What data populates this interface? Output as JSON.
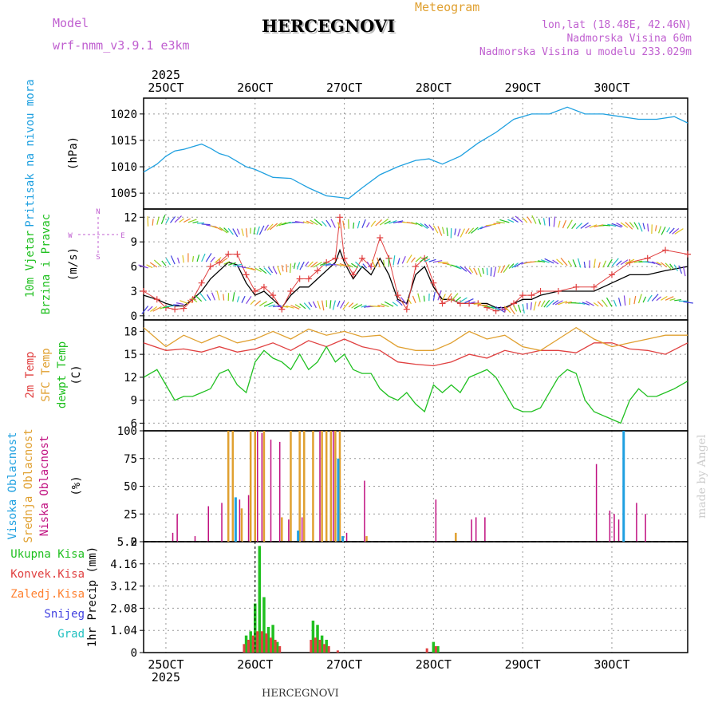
{
  "header": {
    "model_label": "Model",
    "model_name": "wrf-nmm_v3.9.1 e3km",
    "title": "HERCEGNOVI",
    "meteogram": "Meteogram",
    "lonlat": "lon,lat (18.48E, 42.46N)",
    "altitude": "Nadmorska Visina 60m",
    "model_altitude": "Nadmorska Visina u modelu 233.029m",
    "footer_title": "HERCEGNOVI",
    "credit": "made by Angel"
  },
  "colors": {
    "pressure": "#1fa0e0",
    "wind_label": "#20c020",
    "wind_speed": "#000000",
    "gust": "#e04040",
    "temp2m": "#e04040",
    "sfc": "#e0a030",
    "dewpt": "#20c020",
    "cloud_high": "#1fa0e0",
    "cloud_mid": "#e0a030",
    "cloud_low": "#c01080",
    "total_precip": "#20c020",
    "convective": "#e04040",
    "frozen": "#ff8030",
    "snow": "#4040e0",
    "graupel": "#20c0c0",
    "model": "#c060d0"
  },
  "chart_data": {
    "type": "line",
    "x_unit": "day (1 = 25OCT 00Z)",
    "x_range": [
      0.75,
      6.85
    ],
    "year": "2025",
    "x_ticks": [
      {
        "x": 1,
        "label": "25OCT"
      },
      {
        "x": 2,
        "label": "26OCT"
      },
      {
        "x": 3,
        "label": "27OCT"
      },
      {
        "x": 4,
        "label": "28OCT"
      },
      {
        "x": 5,
        "label": "29OCT"
      },
      {
        "x": 6,
        "label": "30OCT"
      }
    ],
    "panels": [
      {
        "id": "pressure",
        "ylabel_left": "Pritisak na nivou mora",
        "ylabel_unit": "(hPa)",
        "ylim": [
          1002,
          1023
        ],
        "yticks": [
          1005,
          1010,
          1015,
          1020
        ],
        "series": [
          {
            "name": "Pressure",
            "color_key": "pressure",
            "x": [
              0.75,
              0.9,
              1.0,
              1.1,
              1.2,
              1.3,
              1.4,
              1.5,
              1.6,
              1.7,
              1.8,
              1.9,
              2.0,
              2.2,
              2.4,
              2.6,
              2.8,
              2.95,
              3.05,
              3.2,
              3.4,
              3.6,
              3.8,
              3.95,
              4.1,
              4.3,
              4.5,
              4.7,
              4.9,
              5.1,
              5.3,
              5.5,
              5.7,
              5.9,
              6.1,
              6.3,
              6.5,
              6.7,
              6.85
            ],
            "y": [
              1009,
              1010.5,
              1012,
              1013,
              1013.3,
              1013.8,
              1014.3,
              1013.5,
              1012.5,
              1012,
              1011,
              1010,
              1009.5,
              1008,
              1007.8,
              1006,
              1004.5,
              1004.2,
              1004,
              1006,
              1008.5,
              1010,
              1011.2,
              1011.5,
              1010.5,
              1012,
              1014.5,
              1016.5,
              1019,
              1020,
              1020,
              1021.3,
              1020,
              1020,
              1019.5,
              1019,
              1019,
              1019.5,
              1018.3
            ]
          }
        ]
      },
      {
        "id": "wind",
        "ylabel_left": "10m Vjetar",
        "ylabel_left2": "Brzina i Pravac",
        "ylabel_unit": "(m/s)",
        "compass": {
          "n": "N",
          "s": "S",
          "e": "E",
          "w": "W"
        },
        "ylim": [
          -0.5,
          13
        ],
        "yticks": [
          0,
          3,
          6,
          9,
          12
        ],
        "series": [
          {
            "name": "Wind speed",
            "color_key": "wind_speed",
            "x": [
              0.75,
              0.9,
              1.0,
              1.1,
              1.2,
              1.3,
              1.4,
              1.5,
              1.6,
              1.7,
              1.8,
              1.9,
              2.0,
              2.1,
              2.2,
              2.3,
              2.4,
              2.5,
              2.6,
              2.7,
              2.8,
              2.9,
              2.95,
              3.0,
              3.1,
              3.2,
              3.3,
              3.4,
              3.5,
              3.6,
              3.7,
              3.8,
              3.9,
              4.0,
              4.1,
              4.2,
              4.3,
              4.4,
              4.5,
              4.6,
              4.7,
              4.8,
              4.9,
              5.0,
              5.1,
              5.2,
              5.4,
              5.6,
              5.8,
              6.0,
              6.2,
              6.4,
              6.6,
              6.85
            ],
            "y": [
              2.5,
              2,
              1.5,
              1.2,
              1.2,
              2,
              3,
              4.5,
              5.5,
              6.5,
              6.2,
              4,
              2.5,
              3,
              2,
              1,
              2.5,
              3.5,
              3.5,
              4.5,
              5.5,
              6.5,
              8,
              6.5,
              4.5,
              6,
              5,
              7,
              5,
              2,
              1.5,
              5,
              6,
              3.5,
              2,
              2,
              1.5,
              1.5,
              1.5,
              1.5,
              1,
              1,
              1.5,
              2,
              2,
              2.5,
              3,
              3,
              3,
              4,
              5,
              5,
              5.5,
              6
            ]
          },
          {
            "name": "Gust",
            "color_key": "gust",
            "x": [
              0.75,
              0.9,
              1.0,
              1.1,
              1.2,
              1.3,
              1.4,
              1.5,
              1.6,
              1.7,
              1.8,
              1.9,
              2.0,
              2.1,
              2.2,
              2.3,
              2.4,
              2.5,
              2.6,
              2.7,
              2.8,
              2.9,
              2.95,
              3.0,
              3.1,
              3.2,
              3.3,
              3.4,
              3.5,
              3.6,
              3.7,
              3.8,
              3.9,
              4.0,
              4.1,
              4.2,
              4.3,
              4.4,
              4.5,
              4.6,
              4.7,
              4.8,
              4.9,
              5.0,
              5.1,
              5.2,
              5.4,
              5.6,
              5.8,
              6.0,
              6.2,
              6.4,
              6.6,
              6.85
            ],
            "y": [
              3,
              2,
              1,
              0.8,
              0.9,
              2,
              4,
              6,
              6.5,
              7.5,
              7.5,
              5,
              3,
              3.5,
              2.5,
              0.8,
              3,
              4.5,
              4.5,
              5.5,
              6.5,
              7,
              12,
              7,
              5,
              7,
              6,
              9.5,
              7,
              2.5,
              0.8,
              6,
              7,
              4,
              1.5,
              2,
              1.5,
              1.5,
              1.5,
              1,
              0.6,
              0.8,
              1.5,
              2.5,
              2.5,
              3,
              3,
              3.5,
              3.5,
              5,
              6.5,
              7,
              8,
              7.5
            ]
          }
        ]
      },
      {
        "id": "temperature",
        "ylabel_left": "2m Temp",
        "ylabel_left2": "SFC Temp",
        "ylabel_left3": "dewpt Temp",
        "ylabel_unit": "(C)",
        "ylim": [
          5,
          19.5
        ],
        "yticks": [
          6,
          9,
          12,
          15,
          18
        ],
        "series": [
          {
            "name": "2m Temp",
            "color_key": "temp2m",
            "x": [
              0.75,
              1.0,
              1.2,
              1.4,
              1.6,
              1.8,
              2.0,
              2.2,
              2.4,
              2.6,
              2.8,
              3.0,
              3.2,
              3.4,
              3.6,
              3.8,
              4.0,
              4.2,
              4.4,
              4.6,
              4.8,
              5.0,
              5.2,
              5.4,
              5.6,
              5.8,
              6.0,
              6.2,
              6.4,
              6.6,
              6.85
            ],
            "y": [
              16.5,
              15.5,
              15.7,
              15.3,
              16,
              15.3,
              15.7,
              16.5,
              15.5,
              16.8,
              16,
              17,
              16,
              15.5,
              14,
              13.7,
              13.5,
              14,
              15,
              14.5,
              15.5,
              15,
              15.5,
              15.5,
              15.2,
              16.5,
              16.5,
              15.7,
              15.5,
              15,
              16.5
            ]
          },
          {
            "name": "SFC Temp",
            "color_key": "sfc",
            "x": [
              0.75,
              1.0,
              1.2,
              1.4,
              1.6,
              1.8,
              2.0,
              2.2,
              2.4,
              2.6,
              2.8,
              3.0,
              3.2,
              3.4,
              3.6,
              3.8,
              4.0,
              4.2,
              4.4,
              4.6,
              4.8,
              5.0,
              5.2,
              5.4,
              5.6,
              5.8,
              6.0,
              6.2,
              6.4,
              6.6,
              6.85
            ],
            "y": [
              18.5,
              16,
              17.5,
              16.5,
              17.5,
              16.5,
              17,
              18,
              17,
              18.3,
              17.5,
              18,
              17.3,
              17.5,
              16,
              15.5,
              15.5,
              16.5,
              18,
              17,
              17.5,
              16,
              15.5,
              17,
              18.5,
              17,
              16,
              16.5,
              17,
              17.5,
              17.5
            ]
          },
          {
            "name": "Dewpoint",
            "color_key": "dewpt",
            "x": [
              0.75,
              0.9,
              1.0,
              1.1,
              1.2,
              1.3,
              1.4,
              1.5,
              1.6,
              1.7,
              1.8,
              1.9,
              2.0,
              2.1,
              2.2,
              2.3,
              2.4,
              2.5,
              2.6,
              2.7,
              2.8,
              2.9,
              3.0,
              3.1,
              3.2,
              3.3,
              3.4,
              3.5,
              3.6,
              3.7,
              3.8,
              3.9,
              4.0,
              4.1,
              4.2,
              4.3,
              4.4,
              4.5,
              4.6,
              4.7,
              4.8,
              4.9,
              5.0,
              5.1,
              5.2,
              5.3,
              5.4,
              5.5,
              5.6,
              5.7,
              5.8,
              5.9,
              6.0,
              6.1,
              6.2,
              6.3,
              6.4,
              6.5,
              6.6,
              6.7,
              6.85
            ],
            "y": [
              12,
              13,
              11,
              9,
              9.5,
              9.5,
              10,
              10.5,
              12.5,
              13,
              11,
              10,
              14,
              15.5,
              14.5,
              14,
              13,
              15,
              13,
              14,
              16,
              14,
              15,
              13,
              12.5,
              12.5,
              10.5,
              9.5,
              9,
              10,
              8.5,
              7.5,
              11,
              10,
              11,
              10,
              12,
              12.5,
              13,
              12,
              10,
              8,
              7.5,
              7.5,
              8,
              10,
              12,
              13,
              12.5,
              9,
              7.5,
              7,
              6.5,
              6,
              9,
              10.5,
              9.5,
              9.5,
              10,
              10.5,
              11.5
            ]
          }
        ]
      },
      {
        "id": "clouds",
        "ylabel_left": "Visoka Oblacnost",
        "ylabel_left2": "Srednja Oblacnost",
        "ylabel_left3": "Niska Oblacnost",
        "ylabel_unit": "(%)",
        "ylim": [
          0,
          100
        ],
        "yticks": [
          0,
          25,
          50,
          75,
          100
        ],
        "bars": {
          "low_x": [
            1.05,
            1.1,
            1.3,
            1.45,
            1.6,
            1.8,
            1.9,
            2.0,
            2.05,
            2.15,
            2.25,
            2.35,
            2.5,
            2.7,
            2.85,
            3.0,
            3.2,
            4.0,
            4.4,
            4.45,
            4.55,
            5.8,
            5.95,
            6.0,
            6.05,
            6.25,
            6.35
          ],
          "low_y": [
            8,
            25,
            5,
            32,
            35,
            38,
            42,
            100,
            98,
            92,
            90,
            20,
            22,
            100,
            100,
            8,
            55,
            38,
            20,
            22,
            22,
            70,
            28,
            25,
            20,
            35,
            25
          ],
          "mid_x": [
            1.7,
            1.75,
            1.85,
            1.95,
            2.0,
            2.1,
            2.3,
            2.4,
            2.5,
            2.55,
            2.65,
            2.75,
            2.8,
            2.85,
            2.9,
            2.95,
            3.25,
            4.25
          ],
          "mid_y": [
            100,
            100,
            30,
            100,
            100,
            100,
            22,
            100,
            100,
            100,
            100,
            100,
            100,
            100,
            100,
            100,
            5,
            8
          ],
          "high_x": [
            1.8,
            2.5,
            2.95,
            3.0,
            6.15
          ],
          "high_y": [
            40,
            10,
            75,
            5,
            100
          ]
        }
      },
      {
        "id": "precip",
        "ylabel_legend": [
          "Ukupna Kisa",
          "Konvek.Kisa",
          "Zaledj.Kisa",
          "Snijeg",
          "Grad"
        ],
        "ylabel_unit": "1hr Precip (mm)",
        "ylim": [
          0,
          5.2
        ],
        "yticks": [
          0,
          1.04,
          2.08,
          3.12,
          4.16,
          5.2
        ],
        "bars": {
          "total_x": [
            1.9,
            1.95,
            2.0,
            2.05,
            2.1,
            2.15,
            2.2,
            2.25,
            2.65,
            2.7,
            2.75,
            2.8,
            4.0,
            4.05
          ],
          "total_y": [
            0.8,
            1.0,
            2.3,
            5.0,
            2.6,
            1.2,
            1.3,
            0.5,
            1.5,
            1.3,
            0.8,
            0.6,
            0.5,
            0.3
          ],
          "conv_x": [
            1.85,
            1.9,
            1.95,
            2.0,
            2.05,
            2.1,
            2.15,
            2.2,
            2.25,
            2.6,
            2.65,
            2.7,
            2.75,
            2.8,
            2.9,
            3.9,
            4.0
          ],
          "conv_y": [
            0.4,
            0.6,
            0.8,
            1.0,
            1.0,
            0.9,
            0.7,
            0.6,
            0.3,
            0.6,
            0.7,
            0.6,
            0.4,
            0.3,
            0.1,
            0.2,
            0.3
          ]
        }
      }
    ]
  }
}
